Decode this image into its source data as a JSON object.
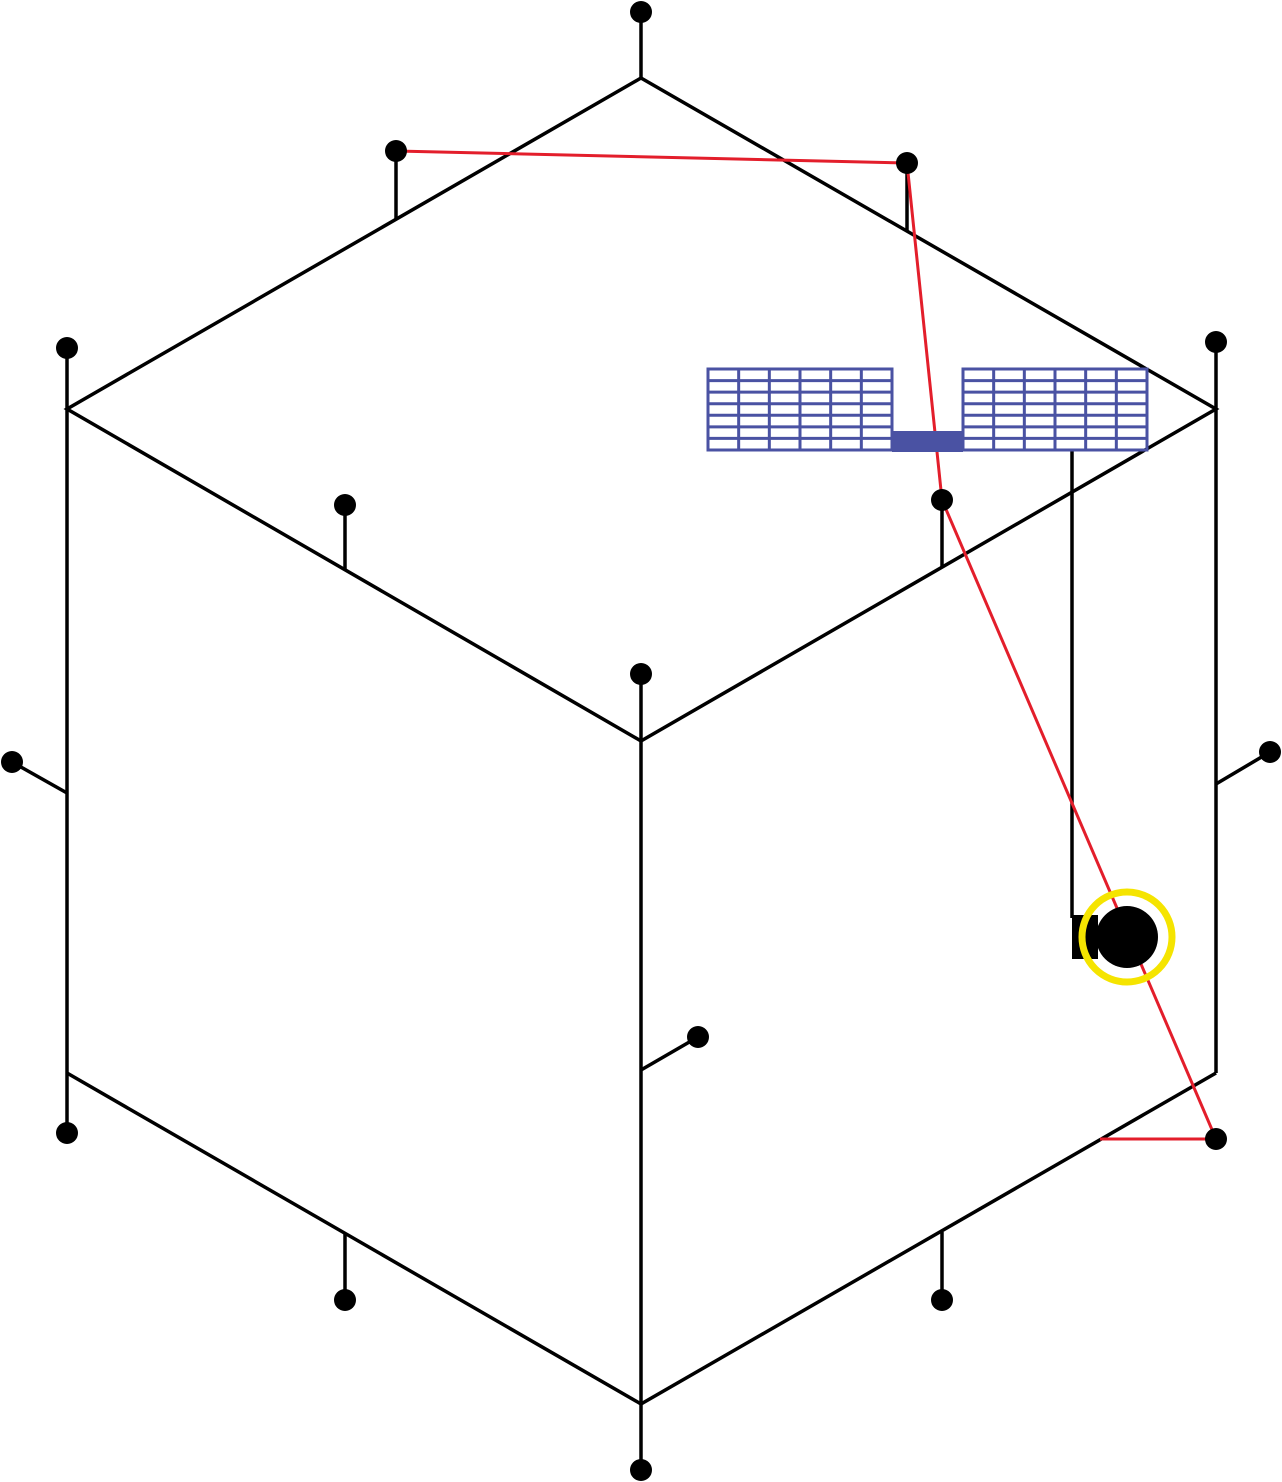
{
  "diagram": {
    "colors": {
      "background": "#ffffff",
      "frame": "#000000",
      "path": "#e31e2b",
      "panel": "#4a52a3",
      "highlight": "#f5e400"
    },
    "elements": {
      "cube": "isometric-cube-wireframe",
      "nodes": "pin-nodes",
      "path": "red-path",
      "panel": "solar-panel-icon",
      "highlight": "highlight-ring"
    }
  }
}
